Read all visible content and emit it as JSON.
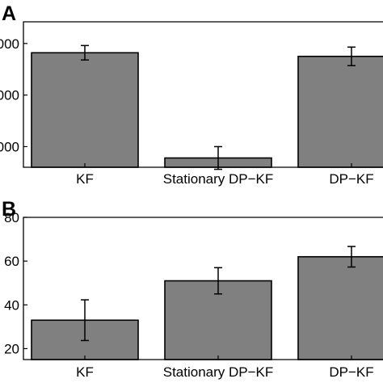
{
  "chart_data": [
    {
      "type": "bar",
      "panel_label": "A",
      "categories": [
        "KF",
        "Stationary DP−KF",
        "DP−KF"
      ],
      "values": [
        2.82,
        0.78,
        2.75
      ],
      "errors": [
        0.14,
        0.22,
        0.18
      ],
      "yticks": [
        1,
        2,
        3
      ],
      "ytick_labels": [
        "000",
        "000",
        "000"
      ],
      "ylim": [
        0.6,
        3.42
      ],
      "title": "",
      "xlabel": "",
      "ylabel": "",
      "grid": false,
      "bar_color": "#808080"
    },
    {
      "type": "bar",
      "panel_label": "B",
      "categories": [
        "KF",
        "Stationary DP−KF",
        "DP−KF"
      ],
      "values": [
        33,
        51,
        62
      ],
      "errors": [
        9.3,
        6.0,
        4.7
      ],
      "yticks": [
        20,
        40,
        60,
        80
      ],
      "ytick_labels": [
        "20",
        "40",
        "60",
        "80"
      ],
      "ylim": [
        15,
        80
      ],
      "title": "",
      "xlabel": "",
      "ylabel": "",
      "grid": false,
      "bar_color": "#808080"
    }
  ]
}
